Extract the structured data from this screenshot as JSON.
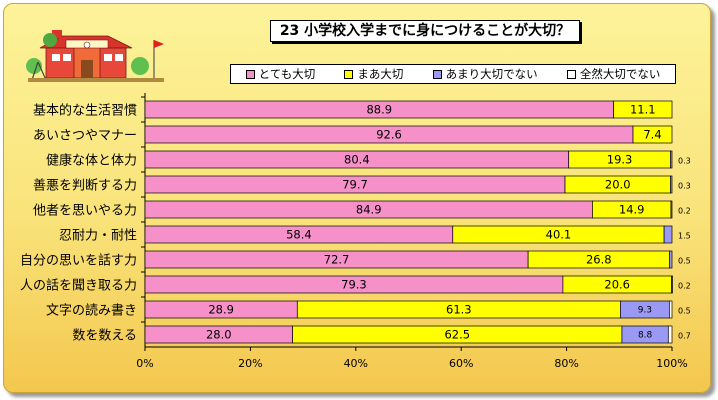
{
  "chart_data": {
    "type": "bar",
    "orientation": "horizontal",
    "stacked": true,
    "title": "23 小学校入学までに身につけることが大切？",
    "categories": [
      "基本的な生活習慣",
      "あいさつやマナー",
      "健康な体と体力",
      "善悪を判断する力",
      "他者を思いやる力",
      "忍耐力・耐性",
      "自分の思いを話す力",
      "人の話を聞き取る力",
      "文字の読み書き",
      "数を数える"
    ],
    "series": [
      {
        "name": "とても大切",
        "color": "#f590c8",
        "values": [
          88.9,
          92.6,
          80.4,
          79.7,
          84.9,
          58.4,
          72.7,
          79.3,
          28.9,
          28.0
        ]
      },
      {
        "name": "まあ大切",
        "color": "#ffff00",
        "values": [
          11.1,
          7.4,
          19.3,
          20.0,
          14.9,
          40.1,
          26.8,
          20.6,
          61.3,
          62.5
        ]
      },
      {
        "name": "あまり大切でない",
        "color": "#9a9af5",
        "values": [
          0,
          0,
          0.3,
          0.3,
          0.2,
          1.5,
          0.5,
          0.2,
          9.3,
          8.8
        ]
      },
      {
        "name": "全然大切でない",
        "color": "#ffffff",
        "values": [
          0,
          0,
          0,
          0,
          0,
          0,
          0,
          0,
          0.5,
          0.7
        ]
      }
    ],
    "outside_labels": [
      "",
      "",
      "0.3",
      "0.3",
      "0.2",
      "1.5",
      "0.5",
      "0.2",
      "0.5",
      "0.7"
    ],
    "x_ticks": [
      "0%",
      "20%",
      "40%",
      "60%",
      "80%",
      "100%"
    ],
    "xlim": [
      0,
      100
    ],
    "legend": "top",
    "grid": false
  }
}
